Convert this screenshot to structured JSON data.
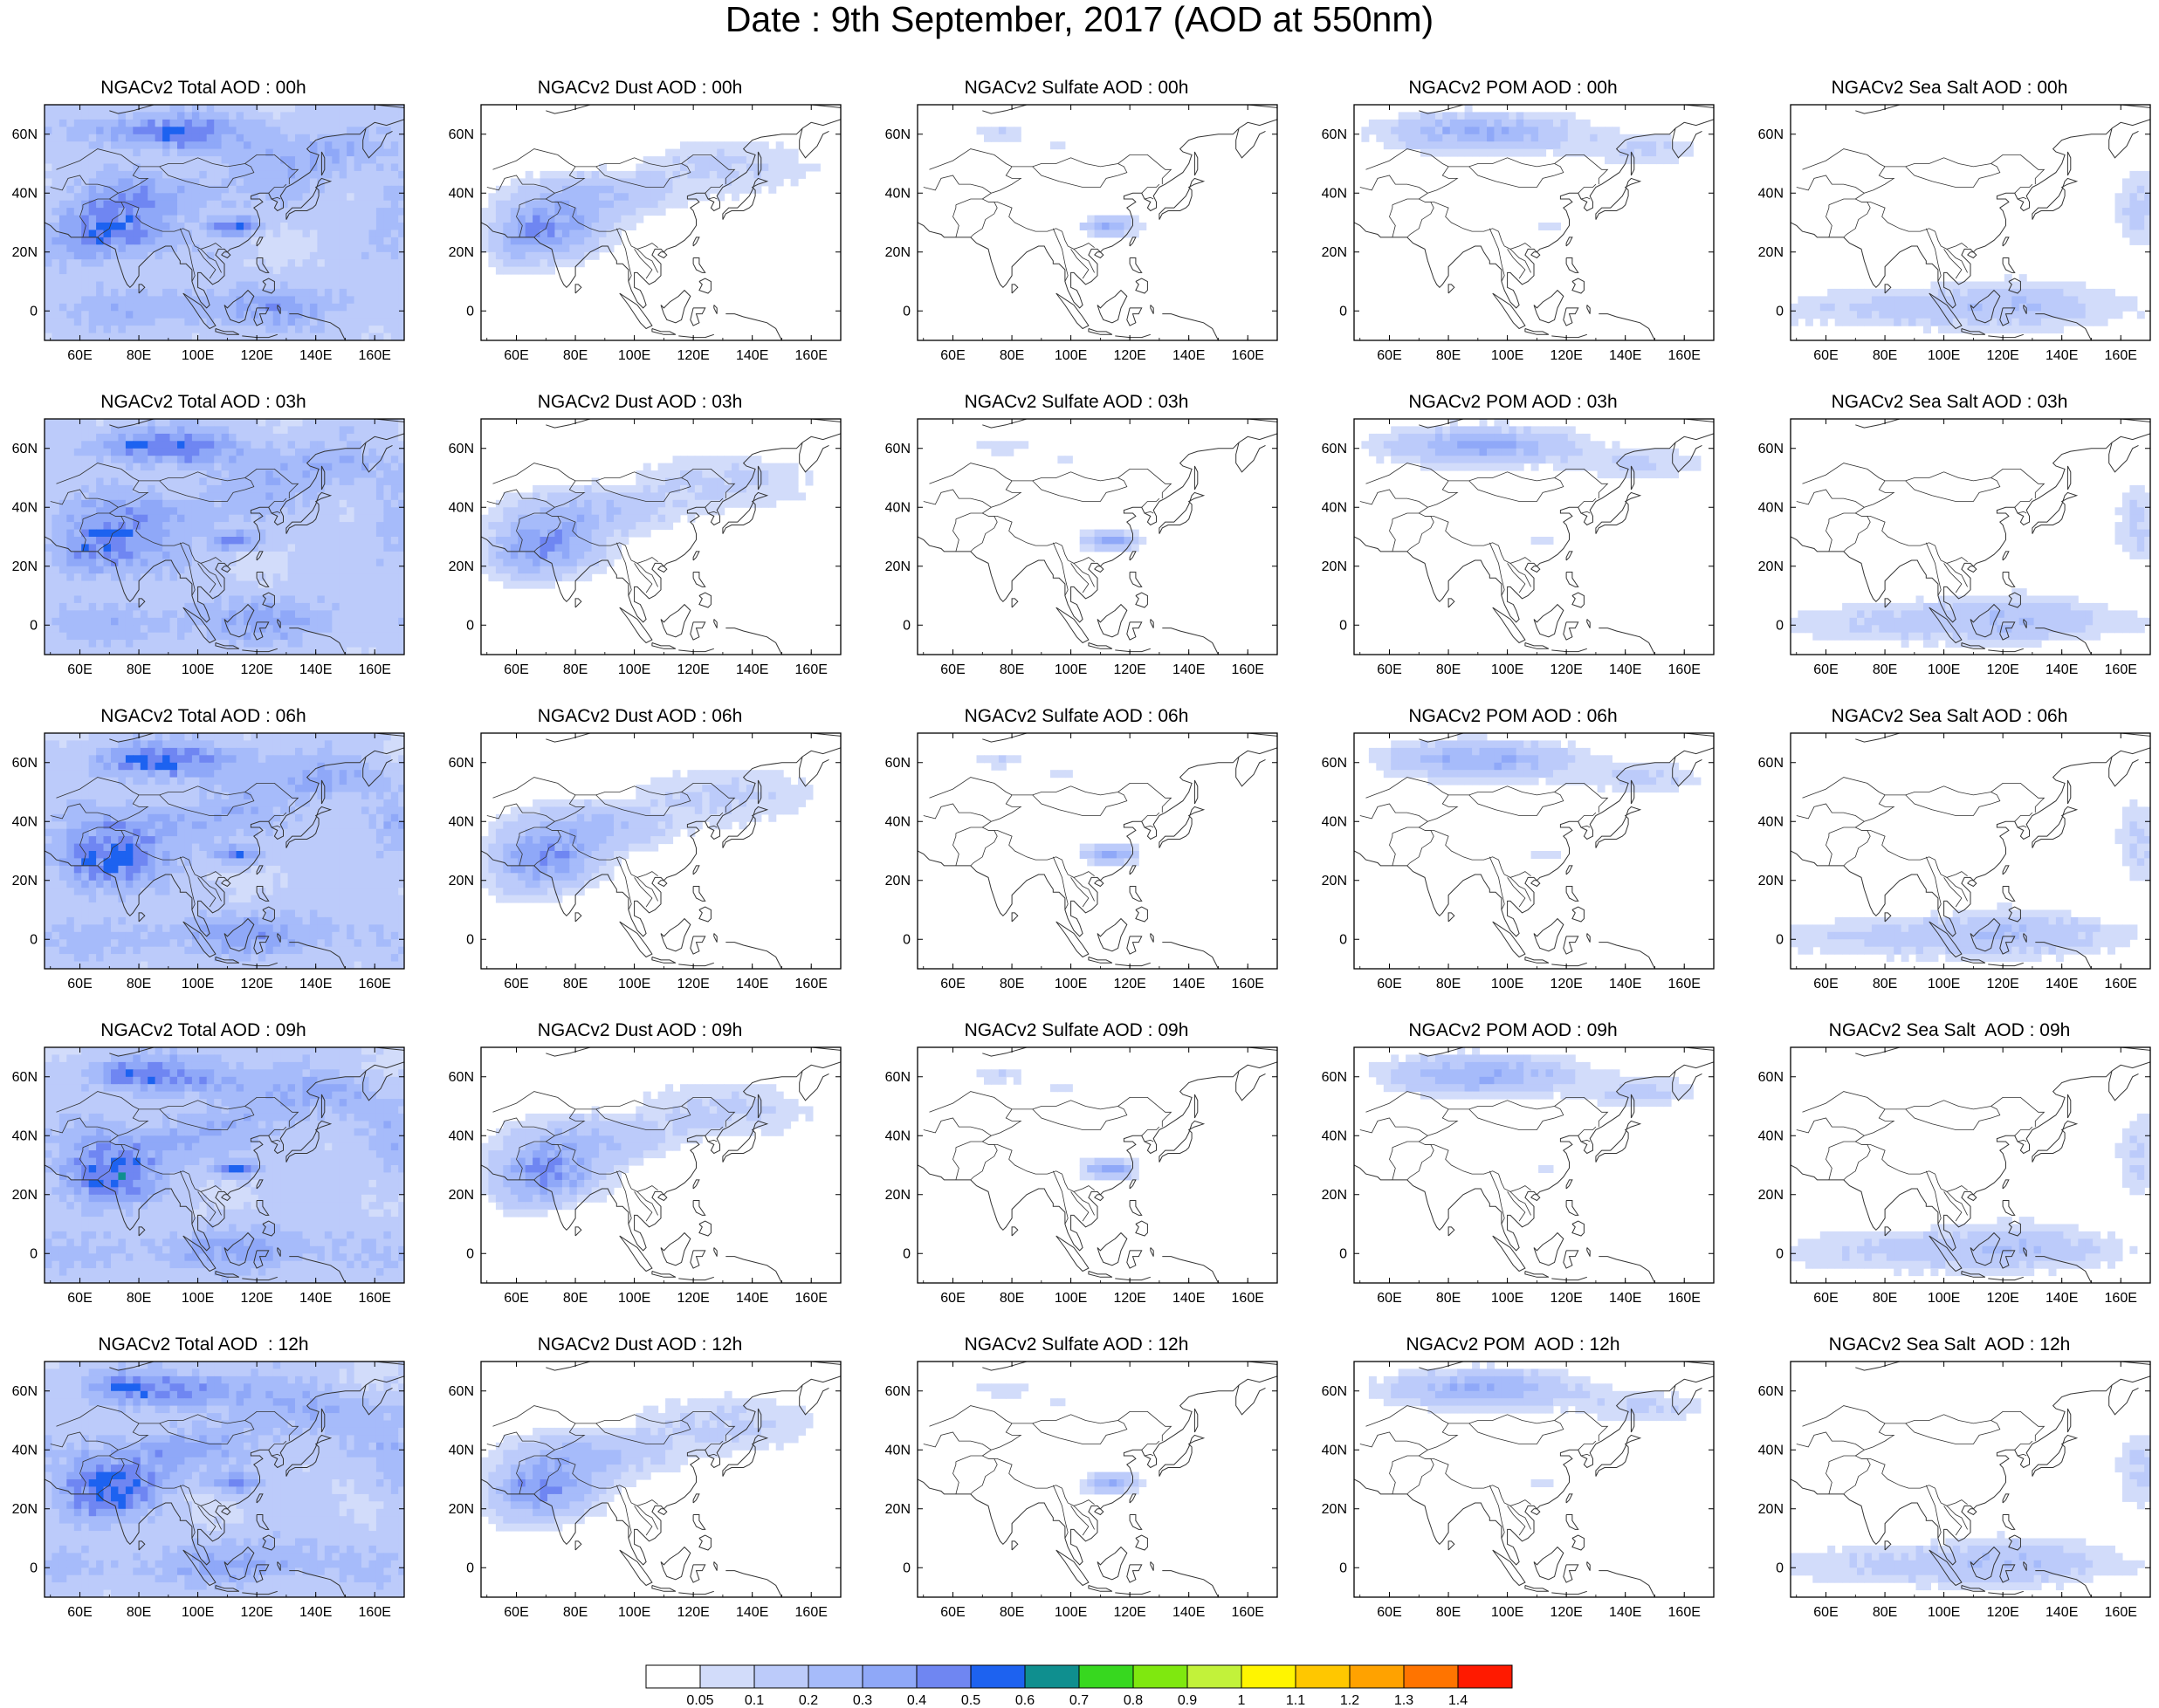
{
  "title": "Date : 9th September, 2017 (AOD at 550nm)",
  "map": {
    "type": "gridded-choropleth",
    "region": "Asia",
    "lon_range": [
      48,
      170
    ],
    "lat_range": [
      -10,
      70
    ],
    "lon_ticks": [
      "60E",
      "80E",
      "100E",
      "120E",
      "140E",
      "160E"
    ],
    "lat_ticks": [
      "60N",
      "40N",
      "20N",
      "0"
    ],
    "lon_tick_values": [
      60,
      80,
      100,
      120,
      140,
      160
    ],
    "lat_tick_values": [
      60,
      40,
      20,
      0
    ]
  },
  "panels": [
    {
      "title": "NGACv2 Total AOD : 00h",
      "kind": "total"
    },
    {
      "title": "NGACv2 Dust AOD : 00h",
      "kind": "dust"
    },
    {
      "title": "NGACv2 Sulfate AOD : 00h",
      "kind": "sulfate"
    },
    {
      "title": "NGACv2 POM AOD : 00h",
      "kind": "pom"
    },
    {
      "title": "NGACv2 Sea Salt AOD : 00h",
      "kind": "seasalt"
    },
    {
      "title": "NGACv2 Total AOD : 03h",
      "kind": "total"
    },
    {
      "title": "NGACv2 Dust AOD : 03h",
      "kind": "dust"
    },
    {
      "title": "NGACv2 Sulfate AOD : 03h",
      "kind": "sulfate"
    },
    {
      "title": "NGACv2 POM AOD : 03h",
      "kind": "pom"
    },
    {
      "title": "NGACv2 Sea Salt AOD : 03h",
      "kind": "seasalt"
    },
    {
      "title": "NGACv2 Total AOD : 06h",
      "kind": "total"
    },
    {
      "title": "NGACv2 Dust AOD : 06h",
      "kind": "dust"
    },
    {
      "title": "NGACv2 Sulfate AOD : 06h",
      "kind": "sulfate"
    },
    {
      "title": "NGACv2 POM AOD : 06h",
      "kind": "pom"
    },
    {
      "title": "NGACv2 Sea Salt AOD : 06h",
      "kind": "seasalt"
    },
    {
      "title": "NGACv2 Total AOD : 09h",
      "kind": "total"
    },
    {
      "title": "NGACv2 Dust AOD : 09h",
      "kind": "dust"
    },
    {
      "title": "NGACv2 Sulfate AOD : 09h",
      "kind": "sulfate"
    },
    {
      "title": "NGACv2 POM AOD : 09h",
      "kind": "pom"
    },
    {
      "title": "NGACv2 Sea Salt  AOD : 09h",
      "kind": "seasalt"
    },
    {
      "title": "NGACv2 Total AOD  : 12h",
      "kind": "total"
    },
    {
      "title": "NGACv2 Dust AOD : 12h",
      "kind": "dust"
    },
    {
      "title": "NGACv2 Sulfate AOD : 12h",
      "kind": "sulfate"
    },
    {
      "title": "NGACv2 POM  AOD : 12h",
      "kind": "pom"
    },
    {
      "title": "NGACv2 Sea Salt  AOD : 12h",
      "kind": "seasalt"
    }
  ],
  "colorbar": {
    "labels": [
      "0.05",
      "0.1",
      "0.2",
      "0.3",
      "0.4",
      "0.5",
      "0.6",
      "0.7",
      "0.8",
      "0.9",
      "1",
      "1.1",
      "1.2",
      "1.3",
      "1.4"
    ],
    "colors": [
      "#ffffff",
      "#d2dcfa",
      "#bccbfa",
      "#a6bbfa",
      "#8fa8f8",
      "#6f86f2",
      "#1d62f0",
      "#0f8f8f",
      "#37d81f",
      "#7fe80f",
      "#c2f23a",
      "#fff500",
      "#ffc700",
      "#ffa200",
      "#ff7400",
      "#ff1a00"
    ]
  }
}
